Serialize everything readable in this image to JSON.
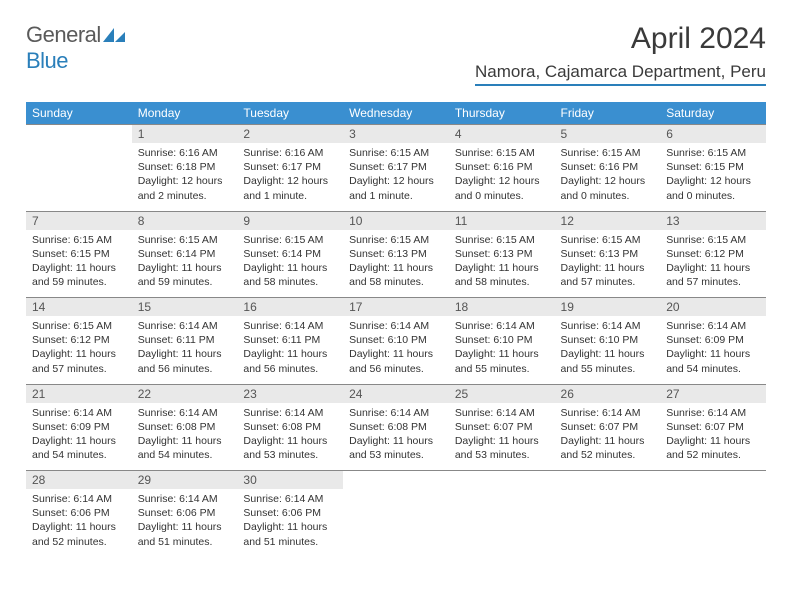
{
  "logo": {
    "general": "General",
    "blue": "Blue"
  },
  "title": "April 2024",
  "location": "Namora, Cajamarca Department, Peru",
  "colors": {
    "header_bg": "#3a8fd0",
    "header_text": "#ffffff",
    "daynum_bg": "#e9e9e9",
    "border": "#888888",
    "accent": "#2a7fba"
  },
  "weekdays": [
    "Sunday",
    "Monday",
    "Tuesday",
    "Wednesday",
    "Thursday",
    "Friday",
    "Saturday"
  ],
  "weeks": [
    {
      "nums": [
        "",
        "1",
        "2",
        "3",
        "4",
        "5",
        "6"
      ],
      "cells": [
        null,
        {
          "sr": "Sunrise: 6:16 AM",
          "ss": "Sunset: 6:18 PM",
          "d1": "Daylight: 12 hours",
          "d2": "and 2 minutes."
        },
        {
          "sr": "Sunrise: 6:16 AM",
          "ss": "Sunset: 6:17 PM",
          "d1": "Daylight: 12 hours",
          "d2": "and 1 minute."
        },
        {
          "sr": "Sunrise: 6:15 AM",
          "ss": "Sunset: 6:17 PM",
          "d1": "Daylight: 12 hours",
          "d2": "and 1 minute."
        },
        {
          "sr": "Sunrise: 6:15 AM",
          "ss": "Sunset: 6:16 PM",
          "d1": "Daylight: 12 hours",
          "d2": "and 0 minutes."
        },
        {
          "sr": "Sunrise: 6:15 AM",
          "ss": "Sunset: 6:16 PM",
          "d1": "Daylight: 12 hours",
          "d2": "and 0 minutes."
        },
        {
          "sr": "Sunrise: 6:15 AM",
          "ss": "Sunset: 6:15 PM",
          "d1": "Daylight: 12 hours",
          "d2": "and 0 minutes."
        }
      ]
    },
    {
      "nums": [
        "7",
        "8",
        "9",
        "10",
        "11",
        "12",
        "13"
      ],
      "cells": [
        {
          "sr": "Sunrise: 6:15 AM",
          "ss": "Sunset: 6:15 PM",
          "d1": "Daylight: 11 hours",
          "d2": "and 59 minutes."
        },
        {
          "sr": "Sunrise: 6:15 AM",
          "ss": "Sunset: 6:14 PM",
          "d1": "Daylight: 11 hours",
          "d2": "and 59 minutes."
        },
        {
          "sr": "Sunrise: 6:15 AM",
          "ss": "Sunset: 6:14 PM",
          "d1": "Daylight: 11 hours",
          "d2": "and 58 minutes."
        },
        {
          "sr": "Sunrise: 6:15 AM",
          "ss": "Sunset: 6:13 PM",
          "d1": "Daylight: 11 hours",
          "d2": "and 58 minutes."
        },
        {
          "sr": "Sunrise: 6:15 AM",
          "ss": "Sunset: 6:13 PM",
          "d1": "Daylight: 11 hours",
          "d2": "and 58 minutes."
        },
        {
          "sr": "Sunrise: 6:15 AM",
          "ss": "Sunset: 6:13 PM",
          "d1": "Daylight: 11 hours",
          "d2": "and 57 minutes."
        },
        {
          "sr": "Sunrise: 6:15 AM",
          "ss": "Sunset: 6:12 PM",
          "d1": "Daylight: 11 hours",
          "d2": "and 57 minutes."
        }
      ]
    },
    {
      "nums": [
        "14",
        "15",
        "16",
        "17",
        "18",
        "19",
        "20"
      ],
      "cells": [
        {
          "sr": "Sunrise: 6:15 AM",
          "ss": "Sunset: 6:12 PM",
          "d1": "Daylight: 11 hours",
          "d2": "and 57 minutes."
        },
        {
          "sr": "Sunrise: 6:14 AM",
          "ss": "Sunset: 6:11 PM",
          "d1": "Daylight: 11 hours",
          "d2": "and 56 minutes."
        },
        {
          "sr": "Sunrise: 6:14 AM",
          "ss": "Sunset: 6:11 PM",
          "d1": "Daylight: 11 hours",
          "d2": "and 56 minutes."
        },
        {
          "sr": "Sunrise: 6:14 AM",
          "ss": "Sunset: 6:10 PM",
          "d1": "Daylight: 11 hours",
          "d2": "and 56 minutes."
        },
        {
          "sr": "Sunrise: 6:14 AM",
          "ss": "Sunset: 6:10 PM",
          "d1": "Daylight: 11 hours",
          "d2": "and 55 minutes."
        },
        {
          "sr": "Sunrise: 6:14 AM",
          "ss": "Sunset: 6:10 PM",
          "d1": "Daylight: 11 hours",
          "d2": "and 55 minutes."
        },
        {
          "sr": "Sunrise: 6:14 AM",
          "ss": "Sunset: 6:09 PM",
          "d1": "Daylight: 11 hours",
          "d2": "and 54 minutes."
        }
      ]
    },
    {
      "nums": [
        "21",
        "22",
        "23",
        "24",
        "25",
        "26",
        "27"
      ],
      "cells": [
        {
          "sr": "Sunrise: 6:14 AM",
          "ss": "Sunset: 6:09 PM",
          "d1": "Daylight: 11 hours",
          "d2": "and 54 minutes."
        },
        {
          "sr": "Sunrise: 6:14 AM",
          "ss": "Sunset: 6:08 PM",
          "d1": "Daylight: 11 hours",
          "d2": "and 54 minutes."
        },
        {
          "sr": "Sunrise: 6:14 AM",
          "ss": "Sunset: 6:08 PM",
          "d1": "Daylight: 11 hours",
          "d2": "and 53 minutes."
        },
        {
          "sr": "Sunrise: 6:14 AM",
          "ss": "Sunset: 6:08 PM",
          "d1": "Daylight: 11 hours",
          "d2": "and 53 minutes."
        },
        {
          "sr": "Sunrise: 6:14 AM",
          "ss": "Sunset: 6:07 PM",
          "d1": "Daylight: 11 hours",
          "d2": "and 53 minutes."
        },
        {
          "sr": "Sunrise: 6:14 AM",
          "ss": "Sunset: 6:07 PM",
          "d1": "Daylight: 11 hours",
          "d2": "and 52 minutes."
        },
        {
          "sr": "Sunrise: 6:14 AM",
          "ss": "Sunset: 6:07 PM",
          "d1": "Daylight: 11 hours",
          "d2": "and 52 minutes."
        }
      ]
    },
    {
      "nums": [
        "28",
        "29",
        "30",
        "",
        "",
        "",
        ""
      ],
      "cells": [
        {
          "sr": "Sunrise: 6:14 AM",
          "ss": "Sunset: 6:06 PM",
          "d1": "Daylight: 11 hours",
          "d2": "and 52 minutes."
        },
        {
          "sr": "Sunrise: 6:14 AM",
          "ss": "Sunset: 6:06 PM",
          "d1": "Daylight: 11 hours",
          "d2": "and 51 minutes."
        },
        {
          "sr": "Sunrise: 6:14 AM",
          "ss": "Sunset: 6:06 PM",
          "d1": "Daylight: 11 hours",
          "d2": "and 51 minutes."
        },
        null,
        null,
        null,
        null
      ]
    }
  ]
}
